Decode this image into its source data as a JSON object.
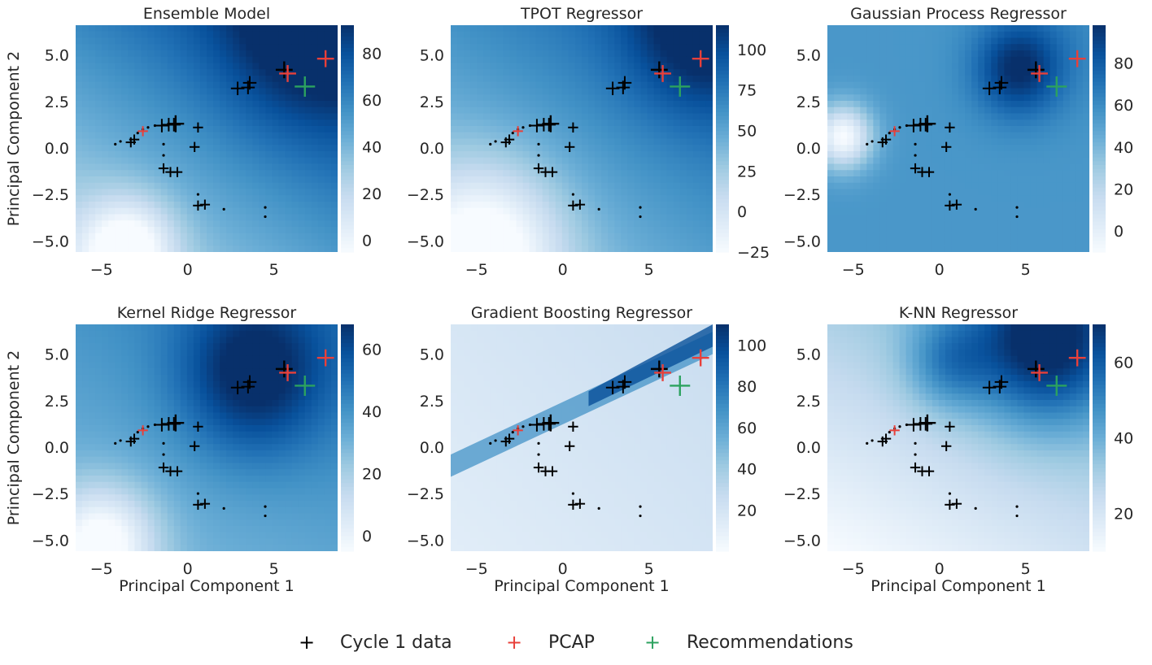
{
  "chart_data": [
    {
      "type": "heatmap",
      "title": "Ensemble Model",
      "xlabel": "",
      "ylabel": "Principal Component 2",
      "xlim": [
        -6.5,
        8.7
      ],
      "ylim": [
        -5.6,
        6.6
      ],
      "xticks": [
        -5,
        0,
        5
      ],
      "yticks": [
        -5.0,
        -2.5,
        0.0,
        2.5,
        5.0
      ],
      "colorbar": {
        "min": -5,
        "max": 92,
        "ticks": [
          0,
          20,
          40,
          60,
          80
        ]
      },
      "field": {
        "base": 52,
        "blobs": [
          {
            "x": -3.5,
            "y": -5.4,
            "s": 1.9,
            "a": -50
          },
          {
            "x": 7.0,
            "y": 6.3,
            "s": 3.5,
            "a": 28
          }
        ],
        "grad": [
          2.0,
          3.0
        ]
      },
      "grid": false,
      "colormap": "Blues"
    },
    {
      "type": "heatmap",
      "title": "TPOT Regressor",
      "xlabel": "",
      "ylabel": "",
      "xlim": [
        -6.5,
        8.7
      ],
      "ylim": [
        -5.6,
        6.6
      ],
      "xticks": [
        -5,
        0,
        5
      ],
      "yticks": [
        -5.0,
        -2.5,
        0.0,
        2.5,
        5.0
      ],
      "colorbar": {
        "min": -25,
        "max": 115,
        "ticks": [
          -25,
          0,
          25,
          50,
          75,
          100
        ]
      },
      "field": {
        "base": 55,
        "blobs": [
          {
            "x": -4.5,
            "y": -5.4,
            "s": 3.2,
            "a": -75
          },
          {
            "x": 8.0,
            "y": 6.4,
            "s": 3.0,
            "a": 45
          }
        ],
        "grad": [
          2.0,
          3.0
        ]
      },
      "grid": false,
      "colormap": "Blues"
    },
    {
      "type": "heatmap",
      "title": "Gaussian Process Regressor",
      "xlabel": "",
      "ylabel": "",
      "xlim": [
        -6.5,
        8.7
      ],
      "ylim": [
        -5.6,
        6.6
      ],
      "xticks": [
        -5,
        0,
        5
      ],
      "yticks": [
        -5.0,
        -2.5,
        0.0,
        2.5,
        5.0
      ],
      "colorbar": {
        "min": -10,
        "max": 98,
        "ticks": [
          0,
          20,
          40,
          60,
          80
        ]
      },
      "field": {
        "base": 55,
        "blobs": [
          {
            "x": -5.6,
            "y": 0.6,
            "s": 1.2,
            "a": -65
          },
          {
            "x": 4.5,
            "y": 4.2,
            "s": 1.7,
            "a": 38
          },
          {
            "x": 6.0,
            "y": 5.5,
            "s": 2.5,
            "a": 10
          }
        ],
        "grad": [
          0,
          0
        ]
      },
      "grid": false,
      "colormap": "Blues"
    },
    {
      "type": "heatmap",
      "title": "Kernel Ridge Regressor",
      "xlabel": "Principal Component 1",
      "ylabel": "Principal Component 2",
      "xlim": [
        -6.5,
        8.7
      ],
      "ylim": [
        -5.6,
        6.6
      ],
      "xticks": [
        -5,
        0,
        5
      ],
      "yticks": [
        -5.0,
        -2.5,
        0.0,
        2.5,
        5.0
      ],
      "colorbar": {
        "min": -5,
        "max": 68,
        "ticks": [
          0,
          20,
          40,
          60
        ]
      },
      "field": {
        "base": 36,
        "blobs": [
          {
            "x": -5.0,
            "y": -5.2,
            "s": 2.2,
            "a": -40
          },
          {
            "x": 3.8,
            "y": 3.9,
            "s": 3.0,
            "a": 32
          }
        ],
        "grad": [
          0.5,
          1.0
        ]
      },
      "grid": false,
      "colormap": "Blues"
    },
    {
      "type": "heatmap",
      "title": "Gradient Boosting Regressor",
      "xlabel": "Principal Component 1",
      "ylabel": "",
      "xlim": [
        -6.5,
        8.7
      ],
      "ylim": [
        -5.6,
        6.6
      ],
      "xticks": [
        -5,
        0,
        5
      ],
      "yticks": [
        -5.0,
        -2.5,
        0.0,
        2.5,
        5.0
      ],
      "colorbar": {
        "min": 0,
        "max": 110,
        "ticks": [
          20,
          40,
          60,
          80,
          100
        ]
      },
      "field": {
        "base": 18,
        "blobs": [],
        "grad": [
          0.5,
          0.5
        ]
      },
      "grid": false,
      "colormap": "Blues"
    },
    {
      "type": "heatmap",
      "title": "K-NN Regressor",
      "xlabel": "Principal Component 1",
      "ylabel": "",
      "xlim": [
        -6.5,
        8.7
      ],
      "ylim": [
        -5.6,
        6.6
      ],
      "xticks": [
        -5,
        0,
        5
      ],
      "yticks": [
        -5.0,
        -2.5,
        0.0,
        2.5,
        5.0
      ],
      "colorbar": {
        "min": 10,
        "max": 70,
        "ticks": [
          20,
          40,
          60
        ]
      },
      "field": {
        "base": 24,
        "blobs": [
          {
            "x": 6.0,
            "y": 5.5,
            "s": 3.0,
            "a": 38
          },
          {
            "x": 0.5,
            "y": 4.5,
            "s": 1.8,
            "a": 18
          }
        ],
        "grad": [
          0.8,
          1.6
        ]
      },
      "grid": false,
      "colormap": "Blues"
    }
  ],
  "points": {
    "cycle1": [
      {
        "x": -4.2,
        "y": 0.2,
        "s": 1
      },
      {
        "x": -3.9,
        "y": 0.35,
        "s": 1
      },
      {
        "x": -3.3,
        "y": 0.3,
        "s": 2
      },
      {
        "x": -3.1,
        "y": 0.45,
        "s": 2
      },
      {
        "x": -2.9,
        "y": 0.8,
        "s": 1
      },
      {
        "x": -2.6,
        "y": 1.0,
        "s": 1
      },
      {
        "x": -2.3,
        "y": 1.1,
        "s": 1
      },
      {
        "x": -1.9,
        "y": 1.2,
        "s": 1
      },
      {
        "x": -1.5,
        "y": 1.2,
        "s": 3
      },
      {
        "x": -1.1,
        "y": 1.25,
        "s": 3
      },
      {
        "x": -0.8,
        "y": 1.25,
        "s": 3
      },
      {
        "x": -0.7,
        "y": 1.3,
        "s": 4
      },
      {
        "x": -1.4,
        "y": 0.2,
        "s": 1
      },
      {
        "x": -1.4,
        "y": -0.4,
        "s": 1
      },
      {
        "x": -1.4,
        "y": -1.1,
        "s": 2
      },
      {
        "x": -1.0,
        "y": -1.3,
        "s": 2
      },
      {
        "x": -0.6,
        "y": -1.3,
        "s": 2
      },
      {
        "x": 0.6,
        "y": 1.1,
        "s": 2
      },
      {
        "x": 0.4,
        "y": 0.05,
        "s": 2
      },
      {
        "x": 0.6,
        "y": -2.5,
        "s": 1
      },
      {
        "x": 0.6,
        "y": -3.1,
        "s": 2
      },
      {
        "x": 1.0,
        "y": -3.05,
        "s": 2
      },
      {
        "x": 2.1,
        "y": -3.3,
        "s": 1
      },
      {
        "x": 4.5,
        "y": -3.2,
        "s": 1
      },
      {
        "x": 4.5,
        "y": -3.7,
        "s": 1
      },
      {
        "x": 2.9,
        "y": 3.2,
        "s": 3
      },
      {
        "x": 3.5,
        "y": 3.25,
        "s": 3
      },
      {
        "x": 3.6,
        "y": 3.5,
        "s": 3
      },
      {
        "x": 5.6,
        "y": 4.2,
        "s": 4
      }
    ],
    "pcap": [
      {
        "x": -2.6,
        "y": 0.9,
        "s": 2
      },
      {
        "x": 5.8,
        "y": 4.0,
        "s": 4
      },
      {
        "x": 8.0,
        "y": 4.8,
        "s": 4
      }
    ],
    "recommendations": [
      {
        "x": 6.8,
        "y": 3.3,
        "s": 5
      }
    ]
  },
  "legend": {
    "placement": "bottom-center",
    "items": [
      {
        "label": "Cycle 1 data",
        "color": "#000000"
      },
      {
        "label": "PCAP",
        "color": "#e8403a"
      },
      {
        "label": "Recommendations",
        "color": "#2ca25f"
      }
    ]
  }
}
